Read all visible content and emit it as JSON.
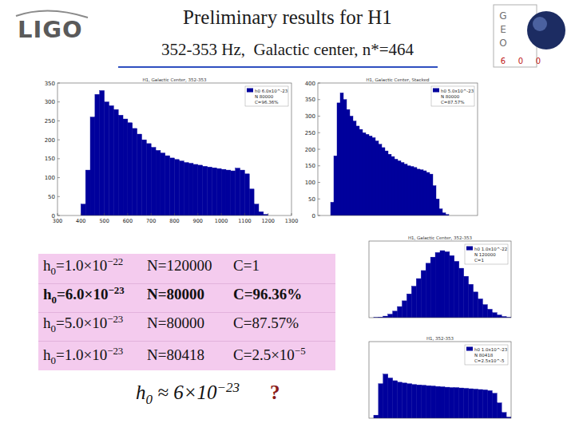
{
  "header": {
    "title": "Preliminary results for H1",
    "subtitle": "352-353 Hz,  Galactic center, n*=464",
    "left_logo": "LIGO",
    "right_logo": [
      "G",
      "E",
      "O",
      "6",
      "0",
      "0"
    ]
  },
  "chart_data": [
    {
      "type": "histogram",
      "title": "H1, Galactic Center, 352-353",
      "bins": [
        300,
        320,
        340,
        360,
        380,
        400,
        420,
        440,
        460,
        480,
        500,
        520,
        540,
        560,
        580,
        600,
        620,
        640,
        660,
        680,
        700,
        720,
        740,
        760,
        780,
        800,
        820,
        840,
        860,
        880,
        900,
        920,
        940,
        960,
        980,
        1000,
        1020,
        1040,
        1060,
        1080,
        1100,
        1120,
        1140,
        1160,
        1180,
        1200,
        1220,
        1240,
        1260,
        1280,
        1300
      ],
      "series": [
        {
          "name": "h0 6.0x10^-23",
          "color": "#00009c",
          "values": [
            0,
            0,
            0,
            0,
            0,
            30,
            120,
            260,
            320,
            330,
            300,
            290,
            280,
            265,
            255,
            245,
            230,
            215,
            200,
            190,
            180,
            172,
            165,
            158,
            152,
            148,
            144,
            140,
            138,
            135,
            133,
            130,
            128,
            126,
            124,
            122,
            120,
            118,
            125,
            120,
            110,
            70,
            30,
            10,
            3,
            0,
            0,
            0,
            0,
            0
          ]
        }
      ],
      "annotations": [
        "N 80000",
        "C=96.36%"
      ],
      "xlim": [
        300,
        1300
      ],
      "ylim": [
        0,
        350
      ],
      "xticks": [
        300,
        400,
        500,
        600,
        700,
        800,
        900,
        1000,
        1100,
        1200,
        1300
      ],
      "yticks": [
        0,
        50,
        100,
        150,
        200,
        250,
        300,
        350
      ],
      "legend": "upper right",
      "grid": false
    },
    {
      "type": "histogram",
      "title": "H1, Galactic Center, Stacked",
      "bins": [
        300,
        320,
        340,
        360,
        380,
        400,
        420,
        440,
        460,
        480,
        500,
        520,
        540,
        560,
        580,
        600,
        620,
        640,
        660,
        680,
        700,
        720,
        740,
        760,
        780,
        800,
        820,
        840,
        860,
        880,
        900,
        920,
        940,
        960,
        980,
        1000,
        1020,
        1040,
        1060,
        1080,
        1100,
        1120,
        1140,
        1160,
        1180,
        1200,
        1220,
        1240,
        1260,
        1280,
        1300
      ],
      "series": [
        {
          "name": "h0 5.0x10^-23",
          "color": "#00009c",
          "values": [
            0,
            0,
            0,
            0,
            40,
            180,
            340,
            370,
            350,
            320,
            300,
            285,
            270,
            260,
            250,
            245,
            240,
            235,
            225,
            215,
            205,
            195,
            185,
            178,
            170,
            165,
            160,
            155,
            150,
            148,
            145,
            140,
            138,
            135,
            130,
            125,
            90,
            50,
            20,
            8,
            3,
            0,
            0,
            0,
            0,
            0,
            0,
            0,
            0,
            0
          ]
        }
      ],
      "annotations": [
        "N 80000",
        "C=87.57%"
      ],
      "xlim": [
        300,
        1300
      ],
      "ylim": [
        0,
        400
      ],
      "yticks": [
        0,
        50,
        100,
        150,
        200,
        250,
        300,
        350,
        400
      ],
      "tick_labels": "y",
      "legend": "upper right",
      "grid": false
    },
    {
      "type": "histogram",
      "title": "H1, Galactic Center, 352-353",
      "bins": [
        0,
        1,
        2,
        3,
        4,
        5,
        6,
        7,
        8,
        9,
        10,
        11,
        12,
        13,
        14,
        15,
        16,
        17,
        18,
        19,
        20,
        21,
        22,
        23,
        24,
        25,
        26,
        27,
        28,
        29,
        30
      ],
      "series": [
        {
          "name": "h0 1.0x10^-22",
          "color": "#00009c",
          "values": [
            0,
            5,
            15,
            40,
            90,
            170,
            290,
            440,
            620,
            820,
            1020,
            1230,
            1420,
            1580,
            1700,
            1750,
            1720,
            1620,
            1470,
            1290,
            1080,
            870,
            670,
            490,
            340,
            220,
            130,
            70,
            30,
            10
          ]
        }
      ],
      "annotations": [
        "N 120000",
        "C=1"
      ],
      "xlim": [
        0,
        30
      ],
      "ylim": [
        0,
        2000
      ],
      "tick_labels": false,
      "legend": "upper right",
      "grid": false
    },
    {
      "type": "histogram",
      "title": "H1, 352-353",
      "bins": [
        0,
        1,
        2,
        3,
        4,
        5,
        6,
        7,
        8,
        9,
        10,
        11,
        12,
        13,
        14,
        15,
        16,
        17,
        18,
        19,
        20,
        21,
        22,
        23,
        24,
        25,
        26,
        27,
        28,
        29,
        30
      ],
      "series": [
        {
          "name": "h0 1.0x10^-23",
          "color": "#00009c",
          "values": [
            0,
            80,
            900,
            1150,
            1050,
            980,
            940,
            920,
            900,
            880,
            870,
            860,
            850,
            840,
            830,
            820,
            810,
            800,
            800,
            790,
            780,
            770,
            760,
            750,
            740,
            720,
            650,
            400,
            150,
            30
          ]
        }
      ],
      "annotations": [
        "N 80418",
        "C=2.5x10^-5"
      ],
      "xlim": [
        0,
        30
      ],
      "ylim": [
        0,
        2000
      ],
      "tick_labels": false,
      "legend": "upper right",
      "grid": false
    }
  ],
  "table": {
    "rows": [
      [
        {
          "text": "h",
          "sub": "0",
          "after": "=1.0×10",
          "sup": "−22"
        },
        {
          "text": "N=120000"
        },
        {
          "text": "C=1"
        }
      ],
      [
        {
          "text": "h",
          "sub": "0",
          "after": "=6.0×10",
          "sup": "−23"
        },
        {
          "text": "N=80000"
        },
        {
          "text": "C=96.36%"
        }
      ],
      [
        {
          "text": "h",
          "sub": "0",
          "after": "=5.0×10",
          "sup": "−23"
        },
        {
          "text": "N=80000"
        },
        {
          "text": "C=87.57%"
        }
      ],
      [
        {
          "text": "h",
          "sub": "0",
          "after": "=1.0×10",
          "sup": "−23"
        },
        {
          "text": "N=80418"
        },
        {
          "text": "C=2.5×10",
          "sup": "−5"
        }
      ]
    ]
  },
  "conclusion": {
    "estimate": {
      "text": "h",
      "sub": "0",
      "after": " ≈ 6×10",
      "sup": "−23"
    },
    "question": "?"
  }
}
